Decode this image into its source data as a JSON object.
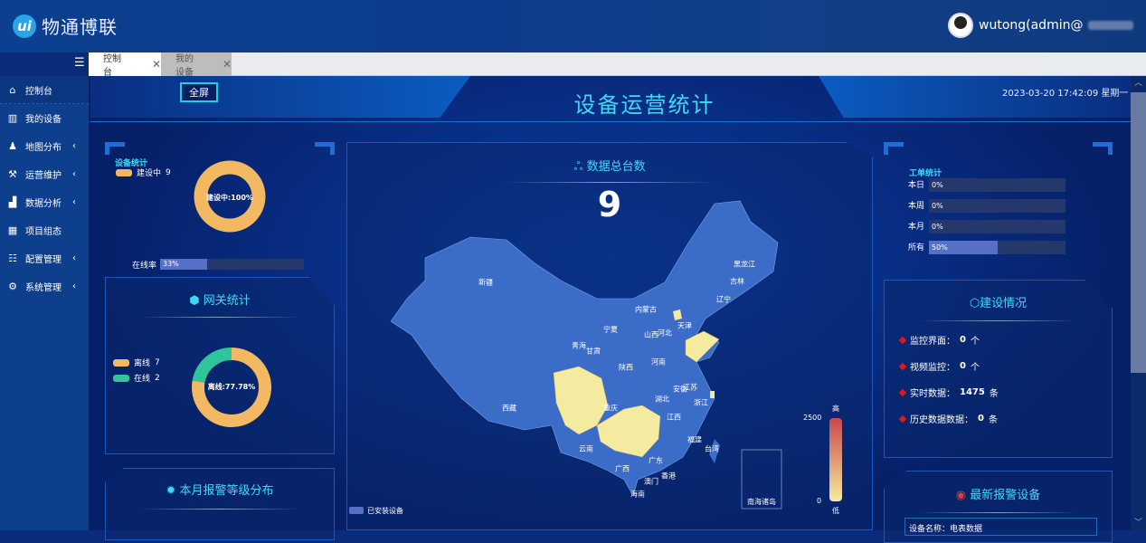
{
  "app": {
    "logo_mark": "ui",
    "logo_text": "物通博联",
    "user": "wutong(admin@"
  },
  "tabs": [
    {
      "label": "控制台",
      "active": true
    },
    {
      "label": "我的设备",
      "active": false
    }
  ],
  "sidebar": {
    "items": [
      {
        "label": "控制台",
        "icon": "home-icon",
        "expand": false
      },
      {
        "label": "我的设备",
        "icon": "devices-icon",
        "expand": false
      },
      {
        "label": "地图分布",
        "icon": "map-user-icon",
        "expand": true
      },
      {
        "label": "运营维护",
        "icon": "tools-icon",
        "expand": true
      },
      {
        "label": "数据分析",
        "icon": "chart-icon",
        "expand": true
      },
      {
        "label": "项目组态",
        "icon": "grid-icon",
        "expand": false
      },
      {
        "label": "配置管理",
        "icon": "sliders-icon",
        "expand": true
      },
      {
        "label": "系统管理",
        "icon": "gear-icon",
        "expand": true
      }
    ]
  },
  "dashboard": {
    "fullscreen": "全屏",
    "title": "设备运营统计",
    "datetime": "2023-03-20 17:42:09 星期一",
    "device_stats": {
      "title": "设备统计",
      "legend": [
        {
          "label": "建设中",
          "value": 9,
          "color": "#f3b862"
        }
      ],
      "center": "建设中:100%",
      "online_label": "在线率",
      "online_rate": "33%",
      "online_fraction": 0.33
    },
    "gateway": {
      "title": "网关统计",
      "legend": [
        {
          "label": "离线",
          "value": 7,
          "color": "#f3b862"
        },
        {
          "label": "在线",
          "value": 2,
          "color": "#2fc49a"
        }
      ],
      "center": "离线:77.78%"
    },
    "alarm_level": {
      "title": "本月报警等级分布"
    },
    "map": {
      "title": "数据总台数",
      "total": "9",
      "legend": "已安装设备",
      "scale_max": "2500",
      "scale_min": "0",
      "scale_high": "高",
      "scale_low": "低",
      "inset": "南海诸岛",
      "provinces": [
        "新疆",
        "西藏",
        "青海",
        "甘肃",
        "宁夏",
        "内蒙古",
        "黑龙江",
        "吉林",
        "辽宁",
        "天津",
        "河北",
        "山西",
        "陕西",
        "河南",
        "江苏",
        "安徽",
        "湖北",
        "浙江",
        "重庆",
        "江西",
        "福建",
        "台湾",
        "云南",
        "广西",
        "广东",
        "香港",
        "澳门",
        "海南"
      ],
      "highlight_color": "#f5eba0",
      "base_color": "#3a6cc8"
    },
    "work_orders": {
      "title": "工单统计",
      "rows": [
        {
          "label": "本日",
          "value": "0%",
          "fraction": 0
        },
        {
          "label": "本周",
          "value": "0%",
          "fraction": 0
        },
        {
          "label": "本月",
          "value": "0%",
          "fraction": 0
        },
        {
          "label": "所有",
          "value": "50%",
          "fraction": 0.5
        }
      ]
    },
    "construction": {
      "title": "建设情况",
      "items": [
        {
          "label": "监控界面：",
          "value": "0",
          "unit": "个"
        },
        {
          "label": "视频监控：",
          "value": "0",
          "unit": "个"
        },
        {
          "label": "实时数据：",
          "value": "1475",
          "unit": "条"
        },
        {
          "label": "历史数据数据：",
          "value": "0",
          "unit": "条"
        }
      ]
    },
    "latest_alarm": {
      "title": "最新报警设备",
      "device_line": "设备名称：电表数据"
    }
  }
}
